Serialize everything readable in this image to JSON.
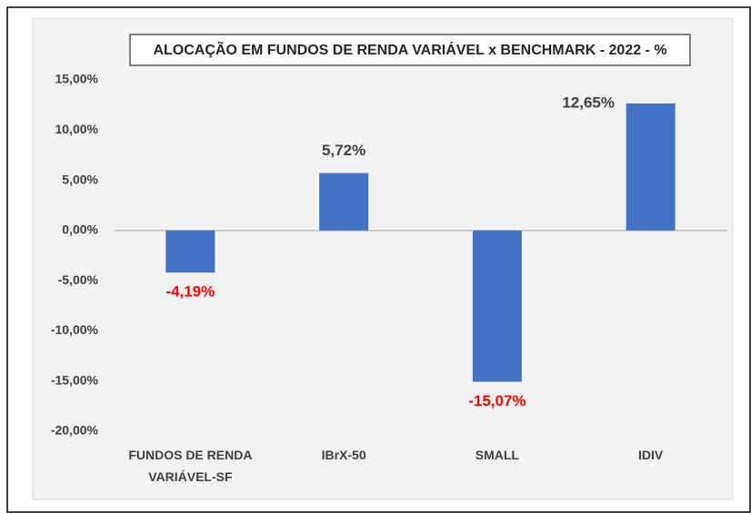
{
  "chart_data": {
    "type": "bar",
    "title": "ALOCAÇÃO EM FUNDOS DE RENDA VARIÁVEL x BENCHMARK - 2022 - %",
    "categories": [
      "FUNDOS DE RENDA VARIÁVEL-SF",
      "IBrX-50",
      "SMALL",
      "IDIV"
    ],
    "values": [
      -4.19,
      5.72,
      -15.07,
      12.65
    ],
    "value_labels": [
      "-4,19%",
      "5,72%",
      "-15,07%",
      "12,65%"
    ],
    "color": "#4472c4",
    "label_color": "#404040",
    "negative_label_color": "#ff0000",
    "ylim": [
      -20,
      15
    ],
    "yticks": [
      {
        "value": -20,
        "label": "-20,00%"
      },
      {
        "value": -15,
        "label": "-15,00%"
      },
      {
        "value": -10,
        "label": "-10,00%"
      },
      {
        "value": -5,
        "label": "-5,00%"
      },
      {
        "value": 0,
        "label": "0,00%"
      },
      {
        "value": 5,
        "label": "5,00%"
      },
      {
        "value": 10,
        "label": "10,00%"
      },
      {
        "value": 15,
        "label": "15,00%"
      }
    ],
    "grid": false
  }
}
